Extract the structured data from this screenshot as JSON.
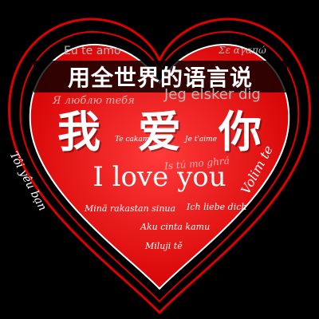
{
  "banner": {
    "title": "用全世界的语言说"
  },
  "heart": {
    "colors": {
      "background": "#000000",
      "fill_top": "#ff2a2a",
      "fill_bottom": "#d80000",
      "outline": "#e00000"
    }
  },
  "phrases": {
    "portuguese": "Eu te amo",
    "greek": "Σε αγαπώ",
    "russian": "Я люблю тебя",
    "danish": "Jeg elsker dig",
    "vietnamese": "Tôi yêu bạn",
    "chinese_char_1": "我",
    "chinese_char_2": "爱",
    "chinese_char_3": "你",
    "serbian": "Te cakam",
    "french": "Je t'aime",
    "irish": "Is tú mo ghrá",
    "croatian": "Volim te",
    "english": "I love you",
    "finnish": "Minä rakastan sinua",
    "german": "Ich liebe dich",
    "indonesian": "Aku cinta kamu",
    "albanian": "Miluji tě"
  }
}
